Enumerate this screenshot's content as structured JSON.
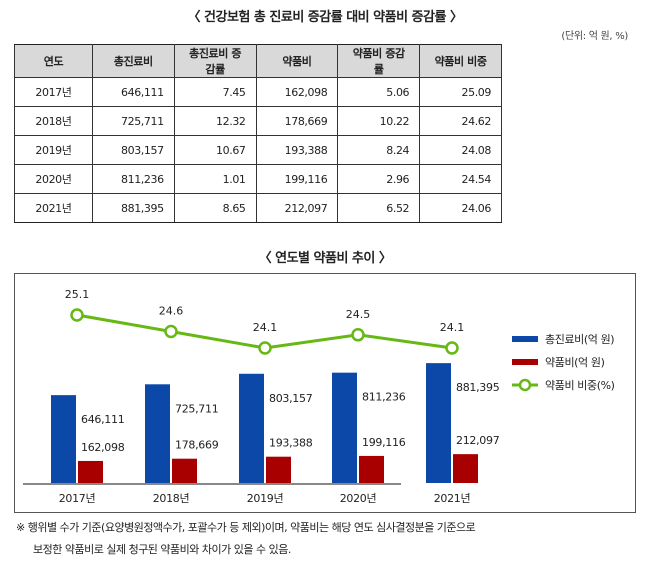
{
  "table": {
    "title": "〈 건강보험 총 진료비 증감률 대비 약품비 증감률 〉",
    "unit": "(단위: 억 원, %)",
    "headers": [
      "연도",
      "총진료비",
      "총진료비 증감률",
      "약품비",
      "약품비 증감률",
      "약품비 비중"
    ],
    "rows": [
      [
        "2017년",
        "646,111",
        "7.45",
        "162,098",
        "5.06",
        "25.09"
      ],
      [
        "2018년",
        "725,711",
        "12.32",
        "178,669",
        "10.22",
        "24.62"
      ],
      [
        "2019년",
        "803,157",
        "10.67",
        "193,388",
        "8.24",
        "24.08"
      ],
      [
        "2020년",
        "811,236",
        "1.01",
        "199,116",
        "2.96",
        "24.54"
      ],
      [
        "2021년",
        "881,395",
        "8.65",
        "212,097",
        "6.52",
        "24.06"
      ]
    ]
  },
  "chart_data": {
    "type": "bar",
    "title": "〈 연도별 약품비 추이 〉",
    "categories": [
      "2017년",
      "2018년",
      "2019년",
      "2020년",
      "2021년"
    ],
    "series": [
      {
        "name": "총진료비(억 원)",
        "kind": "bar",
        "color": "#0b48a8",
        "values": [
          646111,
          725711,
          803157,
          811236,
          881395
        ],
        "labels": [
          "646,111",
          "725,711",
          "803,157",
          "811,236",
          "881,395"
        ]
      },
      {
        "name": "약품비(억 원)",
        "kind": "bar",
        "color": "#a80000",
        "values": [
          162098,
          178669,
          193388,
          199116,
          212097
        ],
        "labels": [
          "162,098",
          "178,669",
          "193,388",
          "199,116",
          "212,097"
        ]
      },
      {
        "name": "약품비 비중(%)",
        "kind": "line",
        "color": "#66b814",
        "values": [
          25.1,
          24.6,
          24.1,
          24.5,
          24.1
        ],
        "labels": [
          "25.1",
          "24.6",
          "24.1",
          "24.5",
          "24.1"
        ]
      }
    ],
    "legend_position": "right",
    "grid": false
  },
  "notes": {
    "line1": "※ 행위별 수가 기준(요양병원정액수가, 포괄수가 등 제외)이며, 약품비는 해당 연도 심사결정분을 기준으로",
    "line2": "보정한 약품비로 실제 청구된 약품비와 차이가 있을 수 있음."
  }
}
